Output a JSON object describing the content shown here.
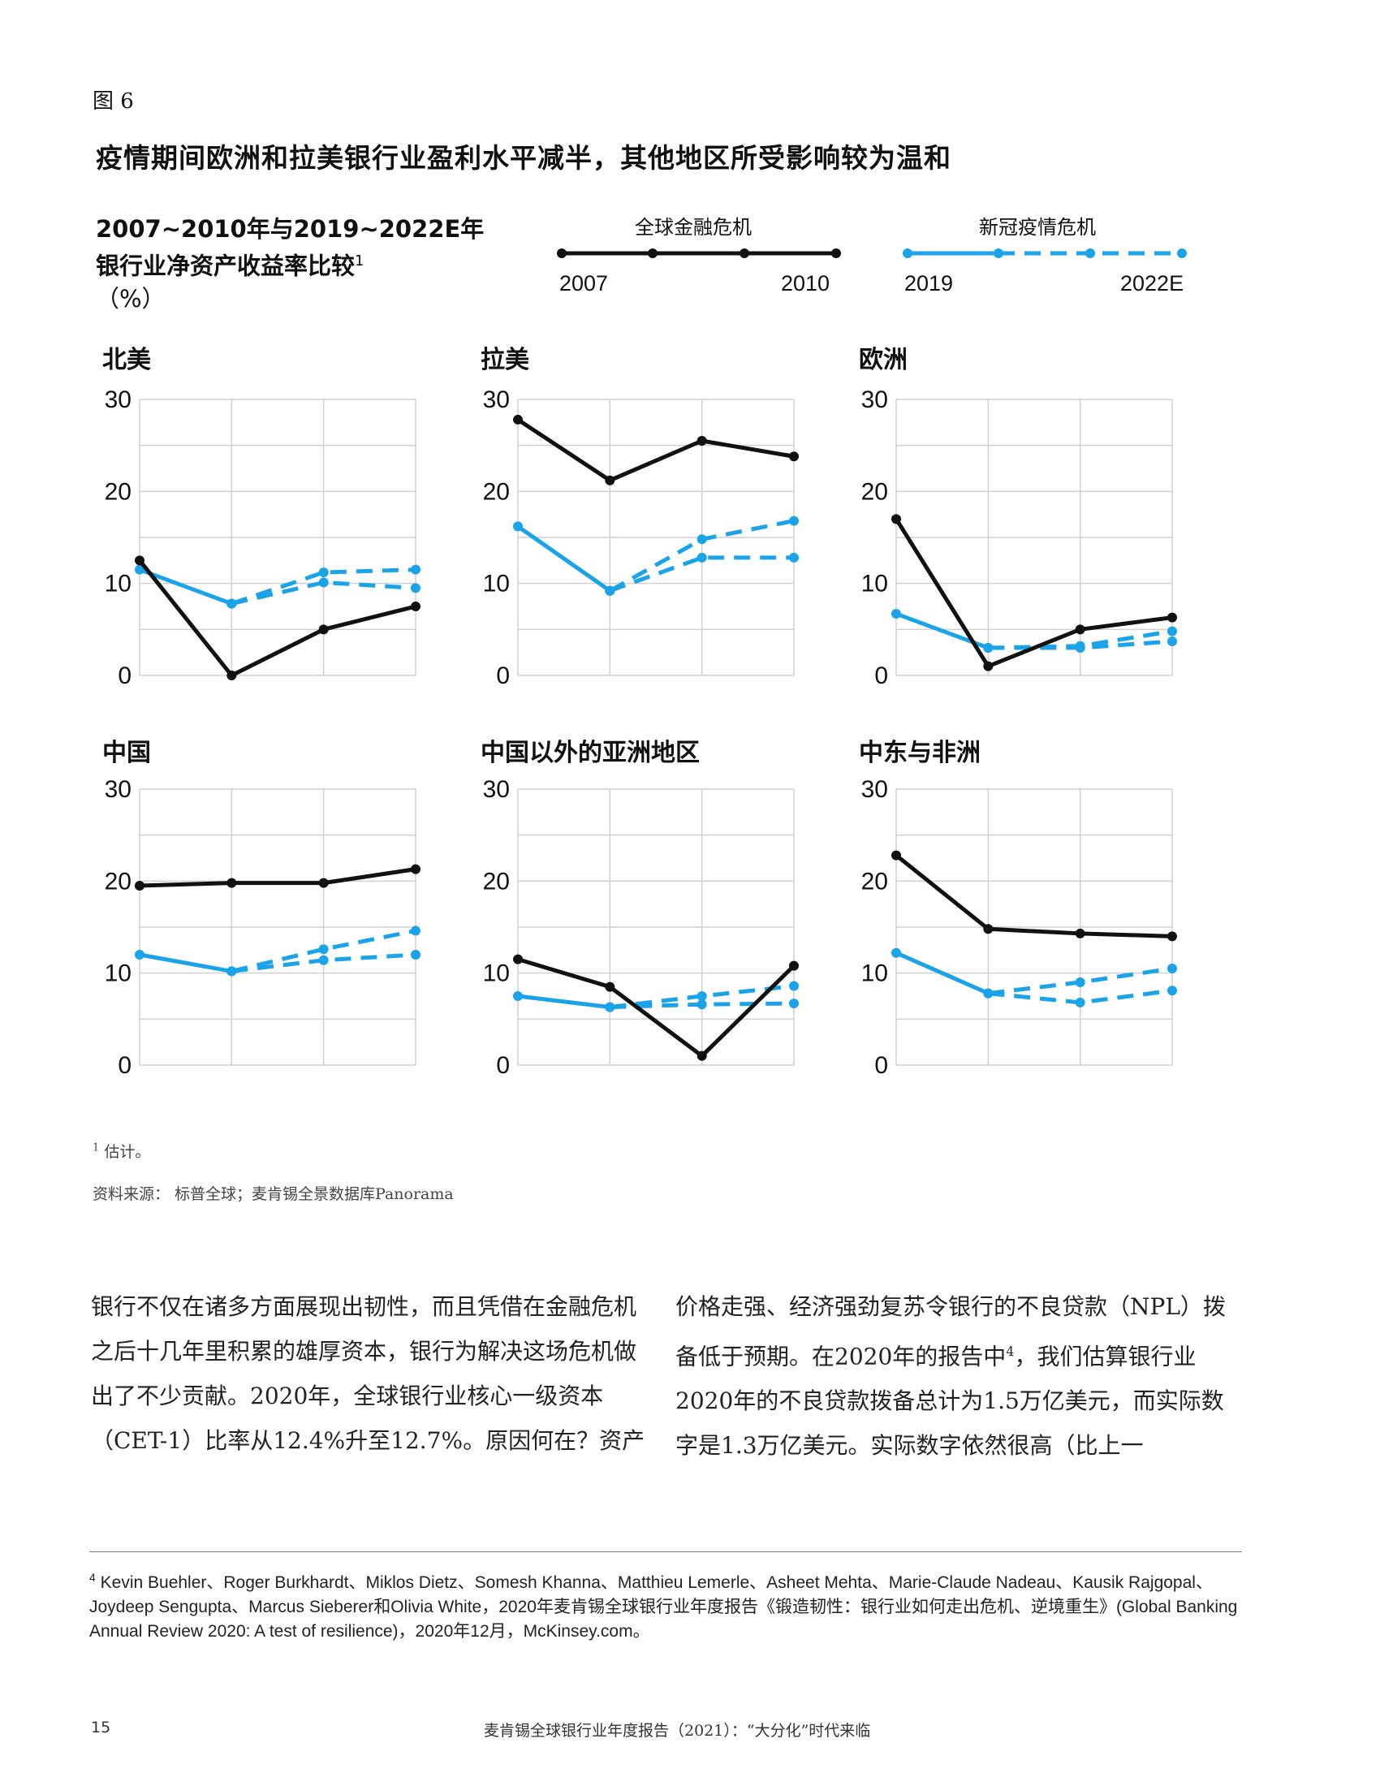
{
  "figure": {
    "label": "图 6",
    "title": "疫情期间欧洲和拉美银行业盈利水平减半，其他地区所受影响较为温和",
    "subtitle_line1": "2007~2010年与2019~2022E年",
    "subtitle_line2": "银行业净资产收益率比较",
    "subtitle_sup": "1",
    "subtitle_unit": "（%）"
  },
  "legend": {
    "gfc": {
      "title": "全球金融危机",
      "start": "2007",
      "end": "2010",
      "color": "#111111"
    },
    "covid": {
      "title": "新冠疫情危机",
      "start": "2019",
      "end": "2022E",
      "color": "#1aa3e8"
    }
  },
  "chart_data": [
    {
      "type": "line",
      "title": "北美",
      "ylim": [
        0,
        30
      ],
      "yticks": [
        "30",
        "20",
        "10",
        "0"
      ],
      "series": [
        {
          "name": "全球金融危机",
          "values": [
            12.5,
            0,
            5,
            7.5
          ]
        },
        {
          "name": "新冠疫情危机",
          "values": [
            11.5,
            7.8
          ]
        },
        {
          "name": "新冠疫情危机-预测高",
          "values": [
            7.8,
            11.2,
            11.5
          ]
        },
        {
          "name": "新冠疫情危机-预测低",
          "values": [
            7.8,
            10.1,
            9.5
          ]
        }
      ]
    },
    {
      "type": "line",
      "title": "拉美",
      "ylim": [
        0,
        30
      ],
      "yticks": [
        "30",
        "20",
        "10",
        "0"
      ],
      "series": [
        {
          "name": "全球金融危机",
          "values": [
            27.8,
            21.2,
            25.5,
            23.8
          ]
        },
        {
          "name": "新冠疫情危机",
          "values": [
            16.2,
            9.2
          ]
        },
        {
          "name": "新冠疫情危机-预测高",
          "values": [
            9.2,
            14.8,
            16.8
          ]
        },
        {
          "name": "新冠疫情危机-预测低",
          "values": [
            9.2,
            12.8,
            12.8
          ]
        }
      ]
    },
    {
      "type": "line",
      "title": "欧洲",
      "ylim": [
        0,
        30
      ],
      "yticks": [
        "30",
        "20",
        "10",
        "0"
      ],
      "series": [
        {
          "name": "全球金融危机",
          "values": [
            17,
            1,
            5,
            6.3
          ]
        },
        {
          "name": "新冠疫情危机",
          "values": [
            6.7,
            3
          ]
        },
        {
          "name": "新冠疫情危机-预测高",
          "values": [
            3,
            3.2,
            4.8
          ]
        },
        {
          "name": "新冠疫情危机-预测低",
          "values": [
            3,
            3,
            3.7
          ]
        }
      ]
    },
    {
      "type": "line",
      "title": "中国",
      "ylim": [
        0,
        30
      ],
      "yticks": [
        "30",
        "20",
        "10",
        "0"
      ],
      "series": [
        {
          "name": "全球金融危机",
          "values": [
            19.5,
            19.8,
            19.8,
            21.3
          ]
        },
        {
          "name": "新冠疫情危机",
          "values": [
            12,
            10.2
          ]
        },
        {
          "name": "新冠疫情危机-预测高",
          "values": [
            10.2,
            12.6,
            14.6
          ]
        },
        {
          "name": "新冠疫情危机-预测低",
          "values": [
            10.2,
            11.4,
            12
          ]
        }
      ]
    },
    {
      "type": "line",
      "title": "中国以外的亚洲地区",
      "ylim": [
        0,
        30
      ],
      "yticks": [
        "30",
        "20",
        "10",
        "0"
      ],
      "series": [
        {
          "name": "全球金融危机",
          "values": [
            11.5,
            8.5,
            1,
            10.8
          ]
        },
        {
          "name": "新冠疫情危机",
          "values": [
            7.5,
            6.3
          ]
        },
        {
          "name": "新冠疫情危机-预测高",
          "values": [
            6.3,
            7.5,
            8.6
          ]
        },
        {
          "name": "新冠疫情危机-预测低",
          "values": [
            6.3,
            6.6,
            6.7
          ]
        }
      ]
    },
    {
      "type": "line",
      "title": "中东与非洲",
      "ylim": [
        0,
        30
      ],
      "yticks": [
        "30",
        "20",
        "10",
        "0"
      ],
      "series": [
        {
          "name": "全球金融危机",
          "values": [
            22.8,
            14.8,
            14.3,
            14
          ]
        },
        {
          "name": "新冠疫情危机",
          "values": [
            12.2,
            7.8
          ]
        },
        {
          "name": "新冠疫情危机-预测高",
          "values": [
            7.8,
            9,
            10.5
          ]
        },
        {
          "name": "新冠疫情危机-预测低",
          "values": [
            7.8,
            6.8,
            8.1
          ]
        }
      ]
    }
  ],
  "notes": {
    "estimate_sup": "1",
    "estimate": "估计。",
    "source": "资料来源： 标普全球；麦肯锡全景数据库Panorama"
  },
  "body": {
    "col1": "银行不仅在诸多方面展现出韧性，而且凭借在金融危机之后十几年里积累的雄厚资本，银行为解决这场危机做出了不少贡献。2020年，全球银行业核心一级资本（CET-1）比率从12.4%升至12.7%。原因何在？资产",
    "col2_a": "价格走强、经济强劲复苏令银行的不良贷款（NPL）拨备低于预期。在2020年的报告中",
    "col2_sup": "4",
    "col2_b": "，我们估算银行业2020年的不良贷款拨备总计为1.5万亿美元，而实际数字是1.3万亿美元。实际数字依然很高（比上一"
  },
  "footnote": {
    "num": "4",
    "text": "Kevin Buehler、Roger Burkhardt、Miklos Dietz、Somesh Khanna、Matthieu Lemerle、Asheet Mehta、Marie-Claude Nadeau、Kausik Rajgopal、Joydeep Sengupta、Marcus Sieberer和Olivia White，2020年麦肯锡全球银行业年度报告《锻造韧性：银行业如何走出危机、逆境重生》(Global Banking Annual Review 2020: A test of resilience)，2020年12月，McKinsey.com。"
  },
  "footer": {
    "page": "15",
    "text": "麦肯锡全球银行业年度报告（2021）：“大分化”时代来临"
  }
}
